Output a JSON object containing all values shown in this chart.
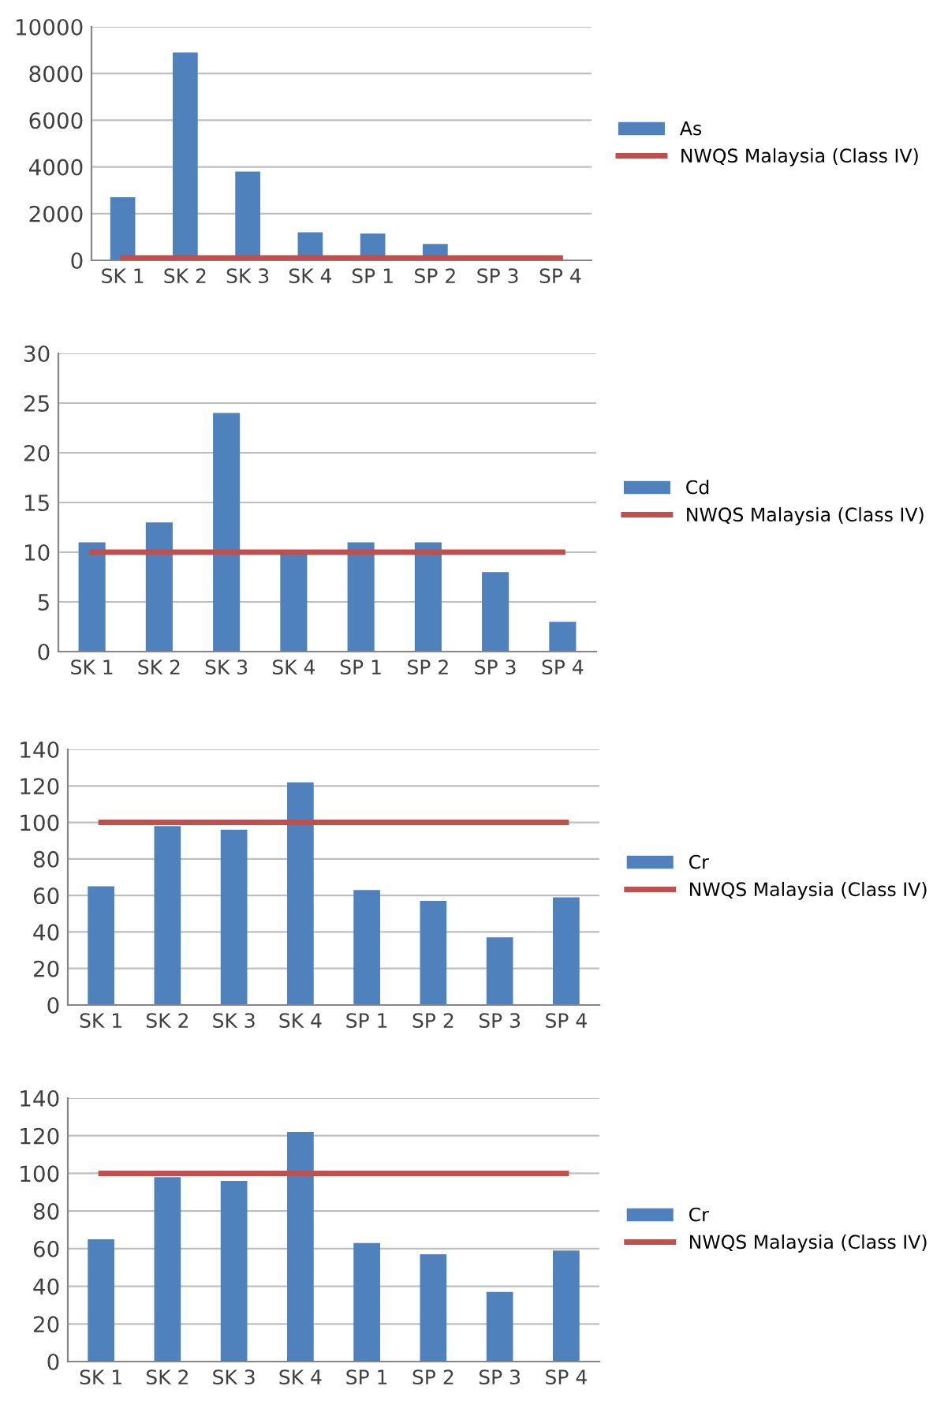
{
  "chart_data": [
    {
      "type": "bar",
      "categories": [
        "SK 1",
        "SK 2",
        "SK 3",
        "SK 4",
        "SP 1",
        "SP 2",
        "SP 3",
        "SP 4"
      ],
      "ylim": [
        0,
        10000
      ],
      "yticks": [
        0,
        2000,
        4000,
        6000,
        8000,
        10000
      ],
      "grid": "y",
      "legend": "right",
      "series": [
        {
          "name": "As",
          "color": "#4f81bd",
          "values": [
            2700,
            8900,
            3800,
            1200,
            1150,
            700,
            0,
            null
          ]
        },
        {
          "name": "NWQS Malaysia (Class IV)",
          "type": "line",
          "color": "#c0504d",
          "values": [
            100,
            100,
            100,
            100,
            100,
            100,
            100,
            100
          ]
        }
      ]
    },
    {
      "type": "bar",
      "categories": [
        "SK 1",
        "SK 2",
        "SK 3",
        "SK 4",
        "SP 1",
        "SP 2",
        "SP 3",
        "SP 4"
      ],
      "ylim": [
        0,
        30
      ],
      "yticks": [
        0,
        5,
        10,
        15,
        20,
        25,
        30
      ],
      "grid": "y",
      "legend": "right",
      "series": [
        {
          "name": "Cd",
          "color": "#4f81bd",
          "values": [
            11,
            13,
            24,
            10,
            11,
            11,
            8,
            3
          ]
        },
        {
          "name": "NWQS Malaysia (Class IV)",
          "type": "line",
          "color": "#c0504d",
          "values": [
            10,
            10,
            10,
            10,
            10,
            10,
            10,
            10
          ]
        }
      ]
    },
    {
      "type": "bar",
      "categories": [
        "SK 1",
        "SK 2",
        "SK 3",
        "SK 4",
        "SP 1",
        "SP 2",
        "SP 3",
        "SP 4"
      ],
      "ylim": [
        0,
        140
      ],
      "yticks": [
        0,
        20,
        40,
        60,
        80,
        100,
        120,
        140
      ],
      "grid": "y",
      "legend": "right",
      "series": [
        {
          "name": "Cr",
          "color": "#4f81bd",
          "values": [
            65,
            98,
            96,
            122,
            63,
            57,
            37,
            59
          ]
        },
        {
          "name": "NWQS Malaysia (Class IV)",
          "type": "line",
          "color": "#c0504d",
          "values": [
            100,
            100,
            100,
            100,
            100,
            100,
            100,
            100
          ]
        }
      ]
    },
    {
      "type": "bar",
      "categories": [
        "SK 1",
        "SK 2",
        "SK 3",
        "SK 4",
        "SP 1",
        "SP 2",
        "SP 3",
        "SP 4"
      ],
      "ylim": [
        0,
        140
      ],
      "yticks": [
        0,
        20,
        40,
        60,
        80,
        100,
        120,
        140
      ],
      "grid": "y",
      "legend": "right",
      "series": [
        {
          "name": "Cr",
          "color": "#4f81bd",
          "values": [
            65,
            98,
            96,
            122,
            63,
            57,
            37,
            59
          ]
        },
        {
          "name": "NWQS Malaysia (Class IV)",
          "type": "line",
          "color": "#c0504d",
          "values": [
            100,
            100,
            100,
            100,
            100,
            100,
            100,
            100
          ]
        }
      ]
    }
  ]
}
